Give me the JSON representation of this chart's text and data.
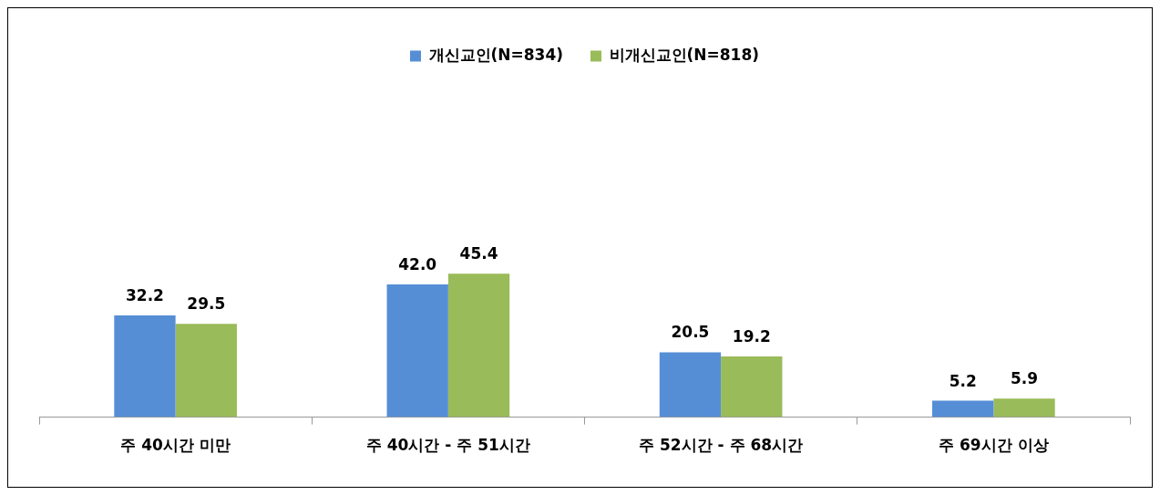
{
  "chart_data": {
    "type": "bar",
    "categories": [
      "주 40시간 미만",
      "주 40시간 - 주 51시간",
      "주 52시간 - 주 68시간",
      "주 69시간 이상"
    ],
    "series": [
      {
        "name": "개신교인(N=834)",
        "color": "#568ed6",
        "values": [
          32.2,
          42.0,
          20.5,
          5.2
        ],
        "value_labels": [
          "32.2",
          "42.0",
          "20.5",
          "5.2"
        ]
      },
      {
        "name": "비개신교인(N=818)",
        "color": "#9abb59",
        "values": [
          29.5,
          45.4,
          19.2,
          5.9
        ],
        "value_labels": [
          "29.5",
          "45.4",
          "19.2",
          "5.9"
        ]
      }
    ],
    "legend": "top",
    "grid": false
  }
}
